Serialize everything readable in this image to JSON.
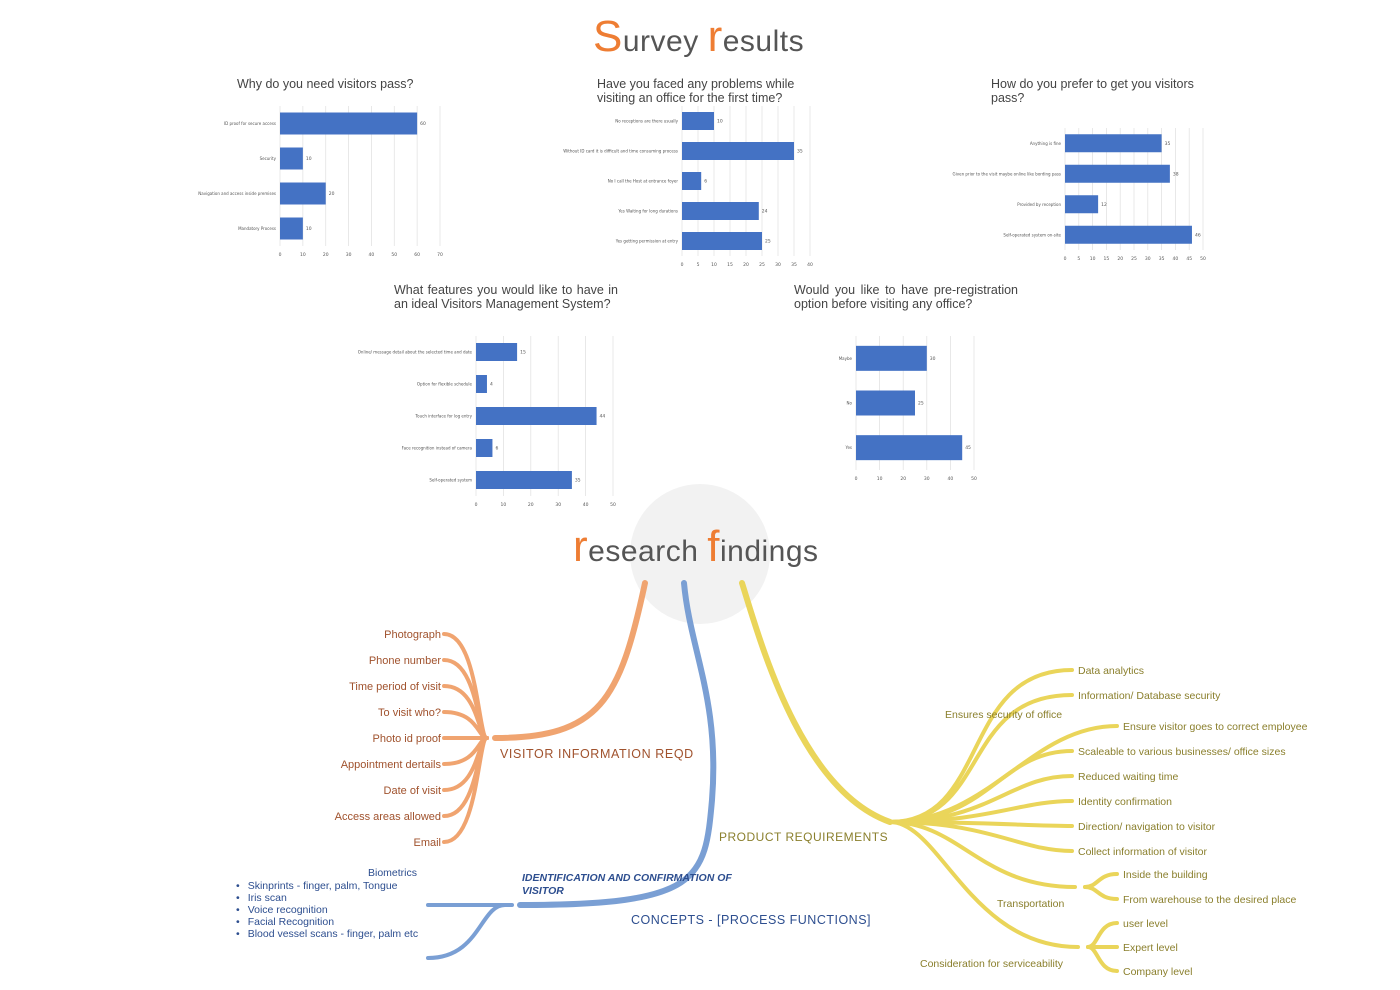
{
  "survey_title": {
    "first_letter": "S",
    "rest1": "urvey ",
    "second_letter": "r",
    "rest2": "esults"
  },
  "research_title": {
    "first_letter": "r",
    "rest1": "esearch ",
    "second_letter": "f",
    "rest2": "indings"
  },
  "colors": {
    "bar": "#4472c4",
    "accent": "#ee7d33",
    "orange_branch": "#f0a470",
    "blue_branch": "#7a9fd4",
    "yellow_branch": "#ead55a",
    "orange_text": "#a0522d",
    "blue_text": "#2d4e8f",
    "yellow_text": "#8a7f2c"
  },
  "chart_data": [
    {
      "id": "c1",
      "type": "bar",
      "orientation": "horizontal",
      "title": "Why do you need visitors pass?",
      "categories": [
        "ID proof for secure access",
        "Security",
        "Navigation and access inside premises",
        "Mandatory Process"
      ],
      "values": [
        60,
        10,
        20,
        10
      ],
      "xticks": [
        0,
        10,
        20,
        30,
        40,
        50,
        60,
        70
      ],
      "xlim": [
        0,
        70
      ]
    },
    {
      "id": "c2",
      "type": "bar",
      "orientation": "horizontal",
      "title": "Have you faced any problems while visiting an office for the first time?",
      "categories": [
        "No receptions are there usually",
        "Without ID card it is difficult and time consuming process",
        "No I call the Host at entrance foyer",
        "Yes Waiting for long durations",
        "Yes getting permission at entry"
      ],
      "values": [
        10,
        35,
        6,
        24,
        25
      ],
      "xticks": [
        0,
        5,
        10,
        15,
        20,
        25,
        30,
        35,
        40
      ],
      "xlim": [
        0,
        40
      ]
    },
    {
      "id": "c3",
      "type": "bar",
      "orientation": "horizontal",
      "title": "How do you prefer to get you visitors pass?",
      "categories": [
        "Anything is fine",
        "Given prior to the visit maybe online like bording pass",
        "Provided by reception",
        "Self-operated system on-site"
      ],
      "values": [
        35,
        38,
        12,
        46
      ],
      "xticks": [
        0,
        5,
        10,
        15,
        20,
        25,
        30,
        35,
        40,
        45,
        50
      ],
      "xlim": [
        0,
        50
      ]
    },
    {
      "id": "c4",
      "type": "bar",
      "orientation": "horizontal",
      "title": "What features you would like to have in an ideal Visitors Management System?",
      "categories": [
        "Online/ message detail about the selected time and date",
        "Option for flexible schedule",
        "Touch interface for log entry",
        "Face recognition instead of camera",
        "Self-operated system"
      ],
      "values": [
        15,
        4,
        44,
        6,
        35
      ],
      "xticks": [
        0,
        10,
        20,
        30,
        40,
        50
      ],
      "xlim": [
        0,
        50
      ]
    },
    {
      "id": "c5",
      "type": "bar",
      "orientation": "horizontal",
      "title": "Would you like to have pre-registration option before visiting any office?",
      "categories": [
        "Maybe",
        "No",
        "Yes"
      ],
      "values": [
        30,
        25,
        45
      ],
      "xticks": [
        0,
        10,
        20,
        30,
        40,
        50
      ],
      "xlim": [
        0,
        50
      ]
    }
  ],
  "mindmap": {
    "visitor_info": {
      "label": "VISITOR INFORMATION REQD",
      "items": [
        "Photograph",
        "Phone number",
        "Time period of visit",
        "To visit who?",
        "Photo id proof",
        "Appointment dertails",
        "Date of visit",
        "Access areas allowed",
        "Email"
      ]
    },
    "concepts": {
      "label": "CONCEPTS - [PROCESS FUNCTIONS]",
      "sub_label_line1": "IDENTIFICATION AND CONFIRMATION OF",
      "sub_label_line2": "VISITOR",
      "biometrics_label": "Biometrics",
      "biometrics": [
        "Skinprints - finger, palm, Tongue",
        "Iris scan",
        "Voice recognition",
        "Facial Recognition",
        "Blood vessel scans - finger, palm etc"
      ]
    },
    "product": {
      "label": "PRODUCT REQUIREMENTS",
      "security_label": "Ensures security of office",
      "items": [
        "Data analytics",
        "Information/ Database security",
        "Ensure visitor goes to correct employee",
        "Scaleable to various businesses/ office sizes",
        "Reduced waiting time",
        "Identity confirmation",
        "Direction/ navigation to visitor",
        "Collect information of visitor"
      ],
      "transportation_label": "Transportation",
      "transportation": [
        "Inside the building",
        "From warehouse to the desired place"
      ],
      "serviceability_label": "Consideration for serviceability",
      "serviceability": [
        "user level",
        "Expert level",
        "Company level"
      ]
    }
  }
}
